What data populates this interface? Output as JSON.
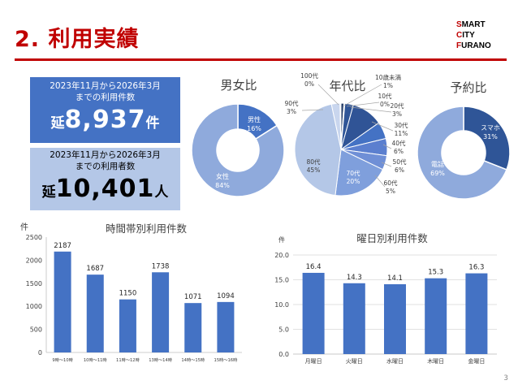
{
  "header": {
    "title": "2. 利用実績",
    "logo": [
      "SMART",
      "CITY",
      "FURANO"
    ]
  },
  "stats": {
    "uses": {
      "label_line1": "2023年11月から2026年3月",
      "label_line2": "までの利用件数",
      "prefix": "延",
      "value": "8,937",
      "unit": "件"
    },
    "users": {
      "label_line1": "2023年11月から2026年3月",
      "label_line2": "までの利用者数",
      "prefix": "延",
      "value": "10,401",
      "unit": "人"
    }
  },
  "page_number": "3",
  "colors": {
    "title_red": "#c00000",
    "dark_blue": "#2f5597",
    "mid_blue": "#4472c4",
    "light_blue": "#8faadc",
    "pale_blue": "#b4c7e7"
  },
  "chart_data": [
    {
      "id": "gender",
      "type": "pie",
      "title": "男女比",
      "categories": [
        "男性",
        "女性"
      ],
      "values": [
        16,
        84
      ],
      "unit": "%",
      "colors": [
        "#4472c4",
        "#8faadc"
      ]
    },
    {
      "id": "age",
      "type": "pie",
      "title": "年代比",
      "categories": [
        "10歳未満",
        "10代",
        "20代",
        "30代",
        "40代",
        "50代",
        "60代",
        "70代",
        "80代",
        "90代",
        "100代"
      ],
      "values": [
        1,
        0,
        3,
        11,
        6,
        6,
        5,
        20,
        45,
        3,
        0
      ],
      "unit": "%",
      "colors": [
        "#1f3864",
        "#203864",
        "#2f5597",
        "#305496",
        "#4472c4",
        "#5b7fcf",
        "#6f8fd6",
        "#7f9fdc",
        "#b4c7e7",
        "#c9d6ee",
        "#dde5f4"
      ]
    },
    {
      "id": "booking",
      "type": "pie",
      "title": "予約比",
      "categories": [
        "スマホ",
        "電話"
      ],
      "values": [
        31,
        69
      ],
      "unit": "%",
      "colors": [
        "#2f5597",
        "#8faadc"
      ]
    },
    {
      "id": "hourly",
      "type": "bar",
      "title": "時間帯別利用件数",
      "ylabel": "件",
      "categories": [
        "9時～10時",
        "10時～11時",
        "11時～12時",
        "13時～14時",
        "14時～15時",
        "15時～16時"
      ],
      "values": [
        2187,
        1687,
        1150,
        1738,
        1071,
        1094
      ],
      "ylim": [
        0,
        2500
      ],
      "yticks": [
        "0",
        "500",
        "1000",
        "1500",
        "2000",
        "2500"
      ],
      "grid": false
    },
    {
      "id": "weekday",
      "type": "bar",
      "title": "曜日別利用件数",
      "ylabel": "件",
      "categories": [
        "月曜日",
        "火曜日",
        "水曜日",
        "木曜日",
        "金曜日"
      ],
      "values": [
        16.4,
        14.3,
        14.1,
        15.3,
        16.3
      ],
      "ylim": [
        0,
        20
      ],
      "yticks": [
        "0.0",
        "5.0",
        "10.0",
        "15.0",
        "20.0"
      ],
      "grid": true
    }
  ]
}
